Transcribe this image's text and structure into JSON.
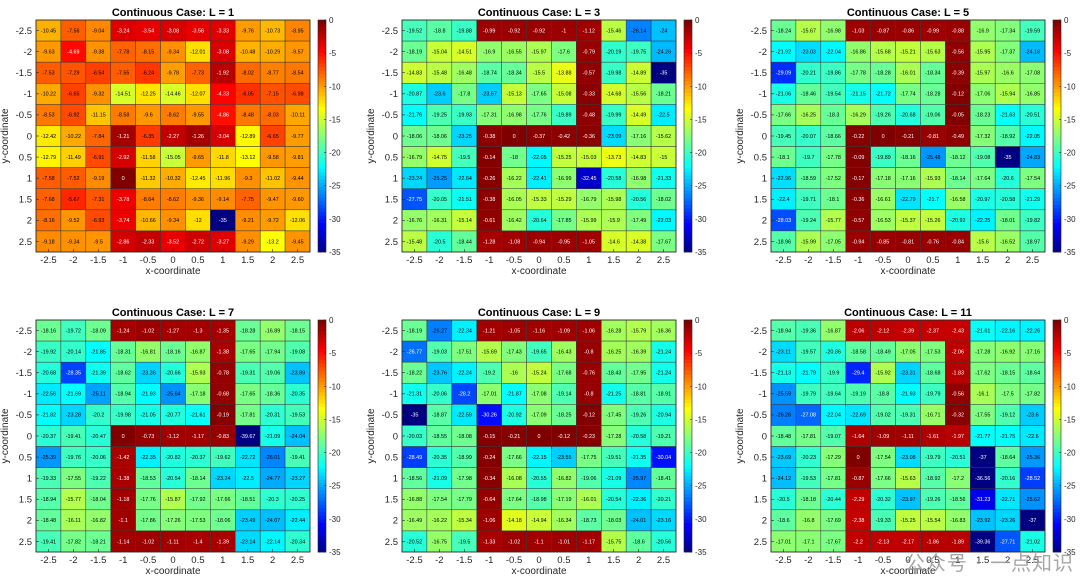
{
  "chart_data": [
    {
      "type": "heatmap",
      "title": "Continuous Case: L = 1",
      "xlabel": "x-coordinate",
      "ylabel": "y-coordinate",
      "x": [
        -2.5,
        -2,
        -1.5,
        -1,
        -0.5,
        0,
        0.5,
        1,
        1.5,
        2,
        2.5
      ],
      "y": [
        -2.5,
        -2,
        -1.5,
        -1,
        -0.5,
        0,
        0.5,
        1,
        1.5,
        2,
        2.5
      ],
      "clim": [
        -35,
        0
      ],
      "colorbar_ticks": [
        0,
        -5,
        -10,
        -15,
        -20,
        -25,
        -30,
        -35
      ],
      "values": [
        [
          "-10.45",
          "-7.56",
          "-9.04",
          "-3.24",
          "-3.54",
          "-3.08",
          "-3.56",
          "-3.33",
          "-9.76",
          "-10.73",
          "-8.95"
        ],
        [
          "-9.63",
          "-4.69",
          "-9.38",
          "-7.78",
          "-8.15",
          "-9.34",
          "-12.01",
          "-3.08",
          "-10.48",
          "-10.29",
          "-9.57"
        ],
        [
          "-7.53",
          "-7.29",
          "-6.54",
          "-7.55",
          "-6.24",
          "-9.78",
          "-7.73",
          "-1.92",
          "-8.02",
          "-8.77",
          "-8.54"
        ],
        [
          "-10.22",
          "-6.65",
          "-9.32",
          "-14.51",
          "-12.25",
          "-14.46",
          "-12.07",
          "-4.33",
          "-6.05",
          "-7.15",
          "-6.98"
        ],
        [
          "-8.53",
          "-6.92",
          "-11.15",
          "-8.58",
          "-9.6",
          "-8.62",
          "-9.55",
          "-4.86",
          "-8.48",
          "-8.03",
          "-10.11"
        ],
        [
          "-12.42",
          "-10.22",
          "-7.84",
          "-1.21",
          "-6.35",
          "-2.27",
          "-1.26",
          "-3.04",
          "-12.89",
          "-6.65",
          "-9.77"
        ],
        [
          "-12.79",
          "-11.49",
          "-6.91",
          "-2.92",
          "-11.58",
          "-15.05",
          "-9.65",
          "-11.8",
          "-13.12",
          "-9.58",
          "-9.81"
        ],
        [
          "-7.58",
          "-7.52",
          "-9.19",
          "0",
          "-11.32",
          "-10.32",
          "-12.45",
          "-11.96",
          "-9.3",
          "-11.02",
          "-9.44"
        ],
        [
          "-7.68",
          "-5.67",
          "-7.31",
          "-3.78",
          "-8.64",
          "-8.62",
          "-9.36",
          "-9.14",
          "-7.75",
          "-9.47",
          "-9.60"
        ],
        [
          "-8.16",
          "-9.52",
          "-6.93",
          "-3.74",
          "-10.66",
          "-9.34",
          "-12",
          "-35",
          "-9.21",
          "-9.72",
          "-12.06"
        ],
        [
          "-9.18",
          "-9.34",
          "-9.5",
          "-2.86",
          "-2.33",
          "-3.52",
          "-2.72",
          "-3.27",
          "-9.29",
          "-13.2",
          "-9.45"
        ]
      ]
    },
    {
      "type": "heatmap",
      "title": "Continuous Case: L = 3",
      "xlabel": "x-coordinate",
      "ylabel": "y-coordinate",
      "x": [
        -2.5,
        -2,
        -1.5,
        -1,
        -0.5,
        0,
        0.5,
        1,
        1.5,
        2,
        2.5
      ],
      "y": [
        -2.5,
        -2,
        -1.5,
        -1,
        -0.5,
        0,
        0.5,
        1,
        1.5,
        2,
        2.5
      ],
      "clim": [
        -35,
        0
      ],
      "colorbar_ticks": [
        0,
        -5,
        -10,
        -15,
        -20,
        -25,
        -30,
        -35
      ],
      "values": [
        [
          "-19.52",
          "-18.8",
          "-19.88",
          "-0.99",
          "-0.92",
          "-0.92",
          "-1",
          "-1.12",
          "-15.46",
          "-26.14",
          "-24"
        ],
        [
          "-18.19",
          "-15.04",
          "-14.51",
          "-16.9",
          "-16.55",
          "-15.97",
          "-17.6",
          "-0.79",
          "-20.19",
          "-19.75",
          "-24.26"
        ],
        [
          "-14.83",
          "-15.48",
          "-16.48",
          "-18.74",
          "-18.34",
          "-15.5",
          "-13.88",
          "-0.57",
          "-19.98",
          "-14.89",
          "-35"
        ],
        [
          "-20.87",
          "-23.6",
          "-17.8",
          "-23.57",
          "-15.13",
          "-17.65",
          "-15.08",
          "-0.33",
          "-14.68",
          "-15.56",
          "-18.21"
        ],
        [
          "-21.76",
          "-19.25",
          "-19.93",
          "-17.31",
          "-16.98",
          "-17.76",
          "-19.89",
          "-0.48",
          "-19.99",
          "-14.49",
          "-22.5"
        ],
        [
          "-18.06",
          "-18.06",
          "-23.25",
          "-0.38",
          "0",
          "-0.37",
          "-0.42",
          "-0.36",
          "-23.09",
          "-17.16",
          "-15.62"
        ],
        [
          "-16.79",
          "-14.75",
          "-19.5",
          "-0.14",
          "-18",
          "-22.05",
          "-15.25",
          "-15.03",
          "-13.73",
          "-14.83",
          "-15"
        ],
        [
          "-23.24",
          "-25.25",
          "-22.64",
          "-0.26",
          "-16.22",
          "-22.41",
          "-16.99",
          "-32.45",
          "-20.58",
          "-16.98",
          "-21.33"
        ],
        [
          "-27.75",
          "-20.05",
          "-21.51",
          "-0.38",
          "-16.05",
          "-15.33",
          "-15.29",
          "-16.79",
          "-15.98",
          "-20.56",
          "-18.02"
        ],
        [
          "-16.76",
          "-16.31",
          "-15.14",
          "-0.61",
          "-16.42",
          "-20.64",
          "-17.85",
          "-15.99",
          "-15.9",
          "-17.49",
          "-22.03"
        ],
        [
          "-15.48",
          "-20.5",
          "-18.44",
          "-1.28",
          "-1.08",
          "-0.94",
          "-0.95",
          "-1.05",
          "-14.6",
          "-14.38",
          "-17.67"
        ]
      ]
    },
    {
      "type": "heatmap",
      "title": "Continuous Case: L = 5",
      "xlabel": "x-coordinate",
      "ylabel": "y-coordinate",
      "x": [
        -2.5,
        -2,
        -1.5,
        -1,
        -0.5,
        0,
        0.5,
        1,
        1.5,
        2,
        2.5
      ],
      "y": [
        -2.5,
        -2,
        -1.5,
        -1,
        -0.5,
        0,
        0.5,
        1,
        1.5,
        2,
        2.5
      ],
      "clim": [
        -35,
        0
      ],
      "colorbar_ticks": [
        0,
        -5,
        -10,
        -15,
        -20,
        -25,
        -30,
        -35
      ],
      "values": [
        [
          "-18.24",
          "-15.67",
          "-16.98",
          "-1.03",
          "-0.87",
          "-0.86",
          "-0.99",
          "-0.88",
          "-16.9",
          "-17.34",
          "-19.59"
        ],
        [
          "-21.92",
          "-23.03",
          "-22.04",
          "-16.86",
          "-15.68",
          "-15.21",
          "-15.63",
          "-0.56",
          "-15.95",
          "-17.37",
          "-24.18"
        ],
        [
          "-29.09",
          "-20.21",
          "-19.86",
          "-17.78",
          "-18.28",
          "-16.01",
          "-18.34",
          "-0.39",
          "-15.97",
          "-16.6",
          "-17.08"
        ],
        [
          "-21.06",
          "-18.46",
          "-19.54",
          "-21.15",
          "-21.72",
          "-17.74",
          "-18.28",
          "-0.12",
          "-17.06",
          "-15.94",
          "-16.85"
        ],
        [
          "-17.66",
          "-16.25",
          "-18.3",
          "-16.29",
          "-19.26",
          "-20.68",
          "-19.06",
          "-0.05",
          "-18.23",
          "-21.63",
          "-20.51"
        ],
        [
          "-19.45",
          "-20.07",
          "-18.66",
          "-0.22",
          "0",
          "-0.21",
          "-0.81",
          "-0.49",
          "-17.32",
          "-18.92",
          "-22.05"
        ],
        [
          "-18.1",
          "-19.7",
          "-17.78",
          "-0.09",
          "-19.89",
          "-18.16",
          "-25.48",
          "-18.12",
          "-19.08",
          "-35",
          "-24.83"
        ],
        [
          "-22.96",
          "-18.59",
          "-17.52",
          "-0.17",
          "-17.18",
          "-17.16",
          "-15.93",
          "-18.14",
          "-17.64",
          "-20.6",
          "-17.54"
        ],
        [
          "-22.4",
          "-19.71",
          "-18.1",
          "-0.36",
          "-16.61",
          "-22.79",
          "-21.7",
          "-16.58",
          "-20.97",
          "-20.58",
          "-21.29"
        ],
        [
          "-28.03",
          "-19.24",
          "-15.77",
          "-0.57",
          "-16.53",
          "-15.37",
          "-15.26",
          "-20.92",
          "-22.25",
          "-18.01",
          "-19.82"
        ],
        [
          "-18.96",
          "-15.99",
          "-17.05",
          "-0.94",
          "-0.85",
          "-0.81",
          "-0.76",
          "-0.84",
          "-15.6",
          "-16.52",
          "-18.97"
        ]
      ]
    },
    {
      "type": "heatmap",
      "title": "Continuous Case: L = 7",
      "xlabel": "x-coordinate",
      "ylabel": "y-coordinate",
      "x": [
        -2.5,
        -2,
        -1.5,
        -1,
        -0.5,
        0,
        0.5,
        1,
        1.5,
        2,
        2.5
      ],
      "y": [
        -2.5,
        -2,
        -1.5,
        -1,
        -0.5,
        0,
        0.5,
        1,
        1.5,
        2,
        2.5
      ],
      "clim": [
        -35,
        0
      ],
      "colorbar_ticks": [
        0,
        -5,
        -10,
        -15,
        -20,
        -25,
        -30,
        -35
      ],
      "values": [
        [
          "-18.16",
          "-19.72",
          "-18.09",
          "-1.24",
          "-1.02",
          "-1.27",
          "-1.3",
          "-1.35",
          "-18.28",
          "-16.89",
          "-18.15"
        ],
        [
          "-19.92",
          "-20.14",
          "-21.85",
          "-18.31",
          "-16.81",
          "-18.16",
          "-16.87",
          "-1.38",
          "-17.65",
          "-17.94",
          "-19.08"
        ],
        [
          "-20.68",
          "-28.35",
          "-21.39",
          "-18.62",
          "-23.36",
          "-20.66",
          "-15.93",
          "-0.78",
          "-19.31",
          "-19.06",
          "-23.89"
        ],
        [
          "-22.56",
          "-21.69",
          "-25.11",
          "-18.94",
          "-21.93",
          "-25.64",
          "-17.18",
          "-0.68",
          "-17.65",
          "-18.36",
          "-20.35"
        ],
        [
          "-21.82",
          "-23.28",
          "-20.2",
          "-19.98",
          "-21.05",
          "-20.77",
          "-21.61",
          "-0.19",
          "-17.81",
          "-20.31",
          "-19.53"
        ],
        [
          "-20.37",
          "-19.41",
          "-20.47",
          "0",
          "-0.73",
          "-1.12",
          "-1.17",
          "-0.83",
          "-39.67",
          "-21.09",
          "-24.04"
        ],
        [
          "-25.39",
          "-19.76",
          "-20.06",
          "-1.42",
          "-22.35",
          "-20.82",
          "-20.37",
          "-19.62",
          "-22.72",
          "-26.01",
          "-19.41"
        ],
        [
          "-19.33",
          "-17.55",
          "-19.22",
          "-1.38",
          "-18.53",
          "-20.54",
          "-18.14",
          "-23.24",
          "-22.5",
          "-24.77",
          "-23.27"
        ],
        [
          "-18.94",
          "-15.77",
          "-18.04",
          "-1.18",
          "-17.76",
          "-15.87",
          "-17.92",
          "-17.66",
          "-18.51",
          "-20.3",
          "-20.25"
        ],
        [
          "-18.48",
          "-16.11",
          "-16.82",
          "-1.1",
          "-17.86",
          "-17.26",
          "-17.53",
          "-18.06",
          "-23.49",
          "-24.07",
          "-22.44"
        ],
        [
          "-19.41",
          "-17.82",
          "-18.21",
          "-1.14",
          "-1.02",
          "-1.11",
          "-1.4",
          "-1.39",
          "-23.14",
          "-22.14",
          "-20.34"
        ]
      ]
    },
    {
      "type": "heatmap",
      "title": "Continuous Case: L = 9",
      "xlabel": "x-coordinate",
      "ylabel": "y-coordinate",
      "x": [
        -2.5,
        -2,
        -1.5,
        -1,
        -0.5,
        0,
        0.5,
        1,
        1.5,
        2,
        2.5
      ],
      "y": [
        -2.5,
        -2,
        -1.5,
        -1,
        -0.5,
        0,
        0.5,
        1,
        1.5,
        2,
        2.5
      ],
      "clim": [
        -35,
        0
      ],
      "colorbar_ticks": [
        0,
        -5,
        -10,
        -15,
        -20,
        -25,
        -30,
        -35
      ],
      "values": [
        [
          "-18.19",
          "-26.27",
          "-22.34",
          "-1.21",
          "-1.05",
          "-1.16",
          "-1.09",
          "-1.06",
          "-16.28",
          "-15.79",
          "-16.36"
        ],
        [
          "-26.77",
          "-19.03",
          "-17.51",
          "-15.69",
          "-17.43",
          "-19.65",
          "-16.43",
          "-0.8",
          "-16.25",
          "-16.39",
          "-21.24"
        ],
        [
          "-18.22",
          "-23.76",
          "-22.24",
          "-19.2",
          "-16",
          "-15.24",
          "-17.68",
          "-0.76",
          "-18.43",
          "-17.95",
          "-21.24"
        ],
        [
          "-21.31",
          "-20.06",
          "-28.2",
          "-17.01",
          "-21.87",
          "-17.08",
          "-19.14",
          "-0.8",
          "-21.25",
          "-18.81",
          "-18.91"
        ],
        [
          "-35",
          "-18.87",
          "-22.59",
          "-30.26",
          "-20.92",
          "-17.09",
          "-18.25",
          "-0.12",
          "-17.45",
          "-19.26",
          "-20.94"
        ],
        [
          "-20.03",
          "-18.55",
          "-18.08",
          "-0.15",
          "-0.21",
          "0",
          "-0.12",
          "-0.23",
          "-17.28",
          "-20.58",
          "-19.21"
        ],
        [
          "-28.49",
          "-20.35",
          "-18.99",
          "-0.24",
          "-17.66",
          "-22.15",
          "-23.55",
          "-17.75",
          "-19.51",
          "-21.35",
          "-30.04"
        ],
        [
          "-18.56",
          "-21.09",
          "-17.98",
          "-0.34",
          "-16.08",
          "-20.55",
          "-16.82",
          "-19.06",
          "-21.09",
          "-25.97",
          "-18.41"
        ],
        [
          "-16.88",
          "-17.54",
          "-17.79",
          "-0.64",
          "-17.64",
          "-18.98",
          "-17.19",
          "-16.01",
          "-20.54",
          "-22.36",
          "-20.21"
        ],
        [
          "-16.49",
          "-16.22",
          "-15.34",
          "-1.06",
          "-14.18",
          "-14.94",
          "-16.34",
          "-18.73",
          "-18.03",
          "-24.01",
          "-23.16"
        ],
        [
          "-20.52",
          "-16.75",
          "-19.5",
          "-1.33",
          "-1.02",
          "-1.1",
          "-1.01",
          "-1.17",
          "-15.75",
          "-18.6",
          "-20.56"
        ]
      ]
    },
    {
      "type": "heatmap",
      "title": "Continuous Case: L = 11",
      "xlabel": "x-coordinate",
      "ylabel": "y-coordinate",
      "x": [
        -2.5,
        -2,
        -1.5,
        -1,
        -0.5,
        0,
        0.5,
        1,
        1.5,
        2,
        2.5
      ],
      "y": [
        -2.5,
        -2,
        -1.5,
        -1,
        -0.5,
        0,
        0.5,
        1,
        1.5,
        2,
        2.5
      ],
      "clim": [
        -35,
        0
      ],
      "colorbar_ticks": [
        0,
        -5,
        -10,
        -15,
        -20,
        -25,
        -30,
        -35
      ],
      "values": [
        [
          "-18.94",
          "-19.36",
          "-16.87",
          "-2.06",
          "-2.12",
          "-2.39",
          "-2.37",
          "-2.43",
          "-21.61",
          "-22.16",
          "-22.26"
        ],
        [
          "-23.11",
          "-19.57",
          "-20.86",
          "-18.58",
          "-18.49",
          "-17.05",
          "-17.53",
          "-2.06",
          "-17.28",
          "-16.92",
          "-17.16"
        ],
        [
          "-21.13",
          "-21.79",
          "-19.9",
          "-29.4",
          "-15.92",
          "-23.31",
          "-18.68",
          "-1.83",
          "-17.62",
          "-18.15",
          "-18.64"
        ],
        [
          "-25.59",
          "-19.79",
          "-19.64",
          "-19.19",
          "-18.8",
          "-21.93",
          "-19.79",
          "-0.56",
          "-16.1",
          "-17.5",
          "-17.82"
        ],
        [
          "-26.26",
          "-27.08",
          "-22.04",
          "-22.69",
          "-19.02",
          "-19.31",
          "-16.71",
          "-0.32",
          "-17.55",
          "-19.12",
          "-23.6"
        ],
        [
          "-18.48",
          "-17.81",
          "-19.07",
          "-1.64",
          "-1.09",
          "-1.11",
          "-1.61",
          "-1.97",
          "-21.77",
          "-21.75",
          "-22.6"
        ],
        [
          "-23.69",
          "-20.23",
          "-17.29",
          "0",
          "-17.54",
          "-23.08",
          "-19.79",
          "-20.51",
          "-37",
          "-18.64",
          "-25.36"
        ],
        [
          "-24.12",
          "-19.53",
          "-17.81",
          "-0.87",
          "-17.66",
          "-15.63",
          "-18.92",
          "-17.2",
          "-36.56",
          "-20.16",
          "-28.52"
        ],
        [
          "-20.5",
          "-18.18",
          "-20.44",
          "-2.29",
          "-20.32",
          "-23.97",
          "-19.26",
          "-18.56",
          "-31.23",
          "-22.71",
          "-25.62"
        ],
        [
          "-18.6",
          "-16.8",
          "-17.69",
          "-2.38",
          "-19.33",
          "-15.25",
          "-15.54",
          "-16.83",
          "-23.92",
          "-23.26",
          "-37"
        ],
        [
          "-17.01",
          "-17.1",
          "-17.67",
          "-2.2",
          "-2.13",
          "-2.17",
          "-1.86",
          "-1.89",
          "-39.36",
          "-27.71",
          "-21.02"
        ]
      ]
    }
  ],
  "watermark": "公众号 · 一点知识"
}
